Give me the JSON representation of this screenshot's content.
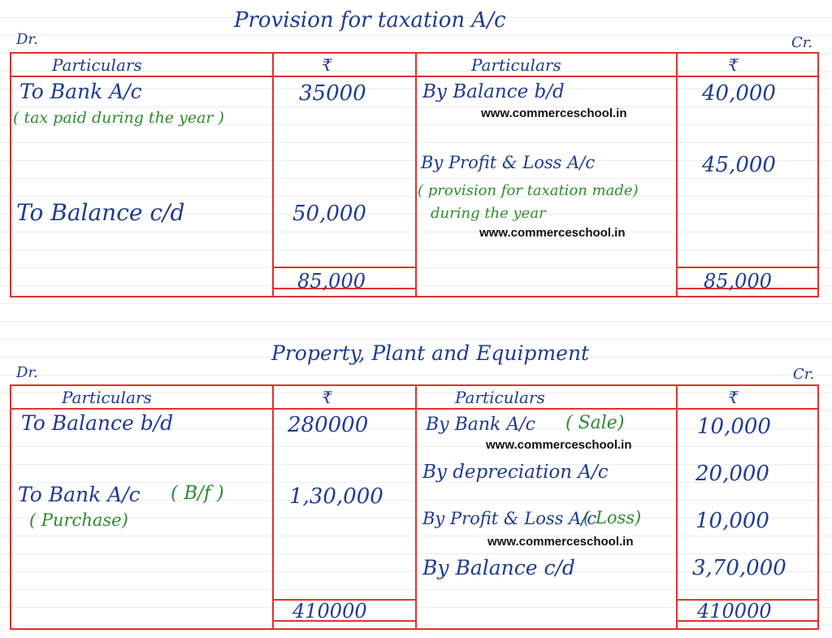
{
  "watermark": "www.commerceschool.in",
  "ledger1": {
    "title": "Provision for taxation A/c",
    "dr_label": "Dr.",
    "cr_label": "Cr.",
    "headers": {
      "particulars_left": "Particulars",
      "amount_left": "₹",
      "particulars_right": "Particulars",
      "amount_right": "₹"
    },
    "debit": [
      {
        "particular": "To Bank A/c",
        "note": "( tax paid during the year )",
        "amount": "35000"
      },
      {
        "particular": "To Balance c/d",
        "note": "",
        "amount": "50,000"
      }
    ],
    "credit": [
      {
        "particular": "By Balance b/d",
        "note": "",
        "amount": "40,000"
      },
      {
        "particular": "By Profit & Loss A/c",
        "note": "( provision for taxation made)",
        "note2": "during the year",
        "amount": "45,000"
      }
    ],
    "total_debit": "85,000",
    "total_credit": "85,000"
  },
  "ledger2": {
    "title": "Property, Plant and Equipment",
    "dr_label": "Dr.",
    "cr_label": "Cr.",
    "headers": {
      "particulars_left": "Particulars",
      "amount_left": "₹",
      "particulars_right": "Particulars",
      "amount_right": "₹"
    },
    "debit": [
      {
        "particular": "To Balance b/d",
        "note": "",
        "amount": "280000"
      },
      {
        "particular": "To Bank A/c",
        "tag": "( B/f )",
        "note": "( Purchase)",
        "amount": "1,30,000"
      }
    ],
    "credit": [
      {
        "particular": "By Bank A/c",
        "tag": "( Sale)",
        "amount": "10,000"
      },
      {
        "particular": "By depreciation A/c",
        "amount": "20,000"
      },
      {
        "particular": "By Profit & Loss A/c",
        "tag": "( Loss)",
        "amount": "10,000"
      },
      {
        "particular": "By Balance c/d",
        "amount": "3,70,000"
      }
    ],
    "total_debit": "410000",
    "total_credit": "410000"
  }
}
